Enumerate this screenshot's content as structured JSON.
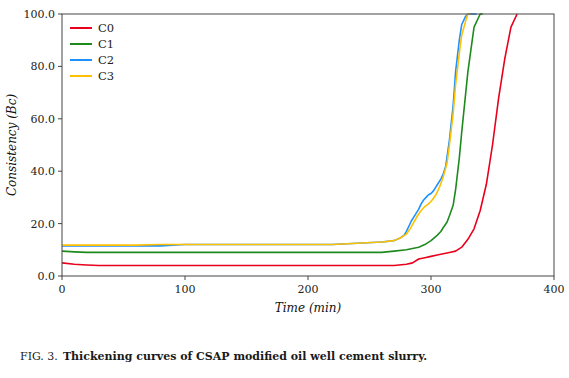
{
  "chart_data": {
    "type": "line",
    "xlabel": "Time (min)",
    "ylabel": "Consistency (Bc)",
    "annotations": [
      "FIG. 3.",
      "Thickening curves of CSAP modified oil well cement slurry."
    ],
    "xlim": [
      0,
      400
    ],
    "ylim": [
      0.0,
      100.0
    ],
    "xticks": [
      0,
      100,
      200,
      300,
      400
    ],
    "yticks": [
      {
        "value": 0.0,
        "label": "0.0"
      },
      {
        "value": 20.0,
        "label": "20.0"
      },
      {
        "value": 40.0,
        "label": "40.0"
      },
      {
        "value": 60.0,
        "label": "60.0"
      },
      {
        "value": 80.0,
        "label": "80.0"
      },
      {
        "value": 100.0,
        "label": "100.0"
      }
    ],
    "grid": false,
    "legend": "upper left",
    "series": [
      {
        "name": "C0",
        "color": "#e8001c",
        "x": [
          0,
          10,
          20,
          30,
          40,
          50,
          60,
          70,
          80,
          90,
          100,
          110,
          120,
          130,
          140,
          150,
          160,
          170,
          180,
          190,
          200,
          210,
          220,
          230,
          240,
          250,
          260,
          270,
          280,
          285,
          290,
          295,
          300,
          305,
          310,
          315,
          320,
          325,
          330,
          335,
          340,
          345,
          350,
          355,
          360,
          365,
          370
        ],
        "values": [
          5,
          4.5,
          4.2,
          4.0,
          4.0,
          4.0,
          4.0,
          4.0,
          4.0,
          4.0,
          4.0,
          4.0,
          4.0,
          4.0,
          4.0,
          4.0,
          4.0,
          4.0,
          4.0,
          4.0,
          4.0,
          4.0,
          4.0,
          4.0,
          4.0,
          4.0,
          4.0,
          4.0,
          4.5,
          5.0,
          6.5,
          7.0,
          7.5,
          8.0,
          8.5,
          9.0,
          9.5,
          11.0,
          14.0,
          18.0,
          25.0,
          35.0,
          50.0,
          68.0,
          83.0,
          95.0,
          100.0
        ]
      },
      {
        "name": "C1",
        "color": "#1e8a1e",
        "x": [
          0,
          10,
          20,
          30,
          40,
          50,
          60,
          70,
          80,
          90,
          100,
          110,
          120,
          130,
          140,
          150,
          160,
          170,
          180,
          190,
          200,
          210,
          220,
          230,
          240,
          250,
          260,
          270,
          280,
          285,
          290,
          295,
          300,
          305,
          308,
          310,
          313,
          315,
          318,
          320,
          323,
          325,
          330,
          335,
          340,
          342
        ],
        "values": [
          9.5,
          9.2,
          9.0,
          9.0,
          9.0,
          9.0,
          9.0,
          9.0,
          9.0,
          9.0,
          9.0,
          9.0,
          9.0,
          9.0,
          9.0,
          9.0,
          9.0,
          9.0,
          9.0,
          9.0,
          9.0,
          9.0,
          9.0,
          9.0,
          9.0,
          9.0,
          9.0,
          9.5,
          10.0,
          10.5,
          11.0,
          12.0,
          13.5,
          15.5,
          17.0,
          18.5,
          20.5,
          23.0,
          27.0,
          33.0,
          45.0,
          55.0,
          78.0,
          95.0,
          100.0,
          100.0
        ]
      },
      {
        "name": "C2",
        "color": "#1e90ff",
        "x": [
          0,
          20,
          40,
          60,
          80,
          100,
          120,
          140,
          160,
          180,
          200,
          220,
          240,
          260,
          270,
          275,
          278,
          280,
          282,
          284,
          286,
          288,
          290,
          292,
          294,
          296,
          298,
          300,
          302,
          304,
          306,
          308,
          310,
          312,
          315,
          318,
          320,
          323,
          325,
          328,
          330,
          332,
          335,
          337
        ],
        "values": [
          11.5,
          11.5,
          11.5,
          11.5,
          11.5,
          12.0,
          12.0,
          12.0,
          12.0,
          12.0,
          12.0,
          12.0,
          12.5,
          13.0,
          13.5,
          14.5,
          15.5,
          17.0,
          19.0,
          21.0,
          22.5,
          24.0,
          25.5,
          27.5,
          29.0,
          30.0,
          31.0,
          31.5,
          32.5,
          34.0,
          35.5,
          37.0,
          39.0,
          42.0,
          52.0,
          65.0,
          78.0,
          90.0,
          96.0,
          99.0,
          100.0,
          100.0,
          100.0,
          100.0
        ]
      },
      {
        "name": "C3",
        "color": "#ffc000",
        "x": [
          0,
          20,
          40,
          60,
          80,
          100,
          120,
          140,
          160,
          180,
          200,
          220,
          240,
          260,
          270,
          275,
          280,
          283,
          286,
          289,
          292,
          295,
          298,
          301,
          304,
          307,
          310,
          313,
          315,
          318,
          320,
          323,
          325,
          328,
          330,
          332
        ],
        "values": [
          11.8,
          11.8,
          11.8,
          11.8,
          12.0,
          12.0,
          12.0,
          12.0,
          12.0,
          12.0,
          12.0,
          12.0,
          12.5,
          13.0,
          13.5,
          14.5,
          16.0,
          18.0,
          20.5,
          23.0,
          25.0,
          26.5,
          27.5,
          29.0,
          31.0,
          34.0,
          38.0,
          43.0,
          50.0,
          62.0,
          73.0,
          85.0,
          92.0,
          97.0,
          100.0,
          100.0
        ]
      }
    ]
  }
}
